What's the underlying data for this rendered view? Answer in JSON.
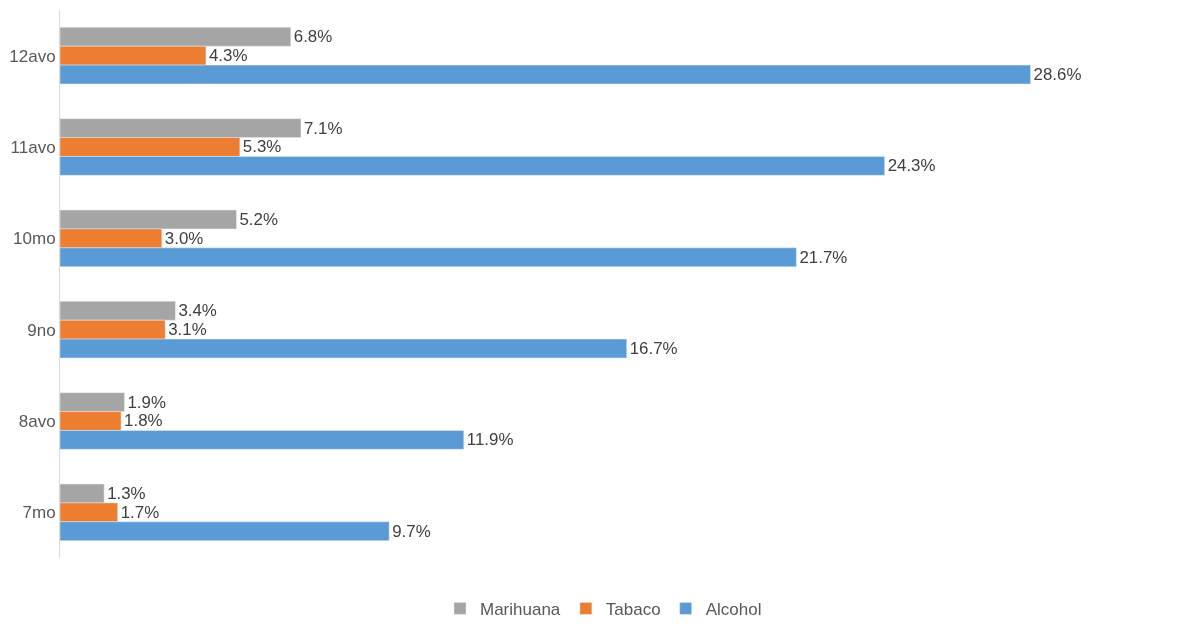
{
  "chart_data": {
    "type": "bar",
    "orientation": "horizontal",
    "categories": [
      "12avo",
      "11avo",
      "10mo",
      "9no",
      "8avo",
      "7mo"
    ],
    "series": [
      {
        "name": "Marihuana",
        "color": "#a5a5a5",
        "values": [
          6.8,
          7.1,
          5.2,
          3.4,
          1.9,
          1.3
        ],
        "value_labels": [
          "6.8%",
          "7.1%",
          "5.2%",
          "3.4%",
          "1.9%",
          "1.3%"
        ]
      },
      {
        "name": "Tabaco",
        "color": "#ed7d31",
        "values": [
          4.3,
          5.3,
          3.0,
          3.1,
          1.8,
          1.7
        ],
        "value_labels": [
          "4.3%",
          "5.3%",
          "3.0%",
          "3.1%",
          "1.8%",
          "1.7%"
        ]
      },
      {
        "name": "Alcohol",
        "color": "#5b9bd5",
        "values": [
          28.6,
          24.3,
          21.7,
          16.7,
          11.9,
          9.7
        ],
        "value_labels": [
          "28.6%",
          "24.3%",
          "21.7%",
          "16.7%",
          "11.9%",
          "9.7%"
        ]
      }
    ],
    "legend": "bottom",
    "tick_labels": "y"
  }
}
